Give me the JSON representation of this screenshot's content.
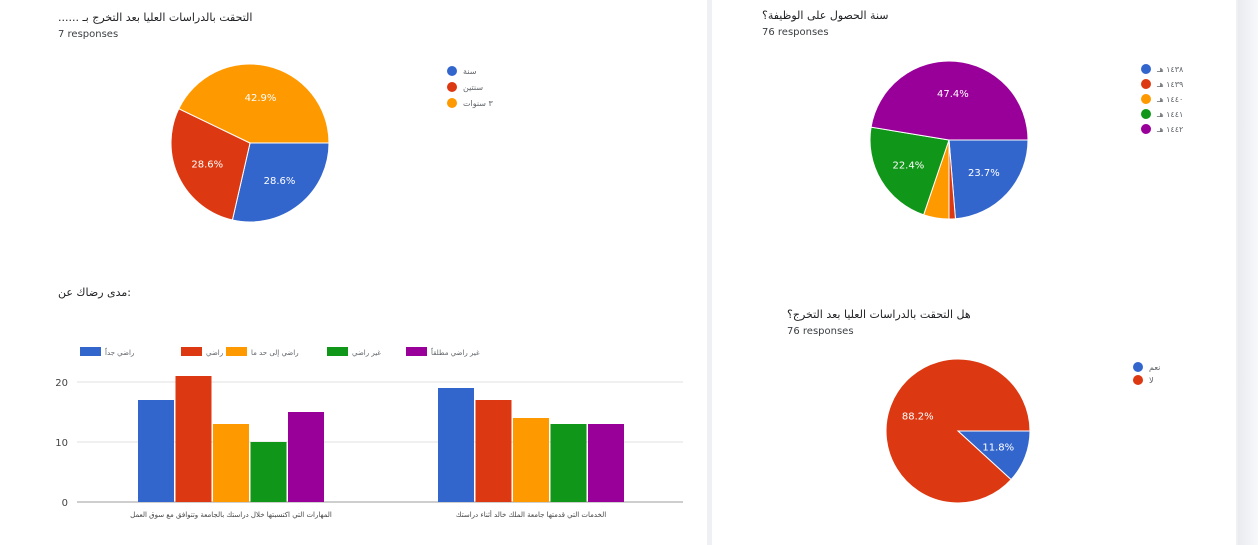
{
  "colors": {
    "blue": "#3366cc",
    "red": "#dc3912",
    "orange": "#ff9900",
    "green": "#109618",
    "purple": "#990099"
  },
  "chart_data": [
    {
      "type": "pie",
      "title": "...... التحقت بالدراسات العليا بعد التخرج بـ",
      "subtitle": "7 responses",
      "legend_position": "right",
      "categories": [
        "سنة",
        "سنتين",
        "٣ سنوات"
      ],
      "values": [
        28.6,
        28.6,
        42.9
      ],
      "labels": [
        "28.6%",
        "28.6%",
        "42.9%"
      ],
      "colors": [
        "#3366cc",
        "#dc3912",
        "#ff9900"
      ]
    },
    {
      "type": "pie",
      "title": "سنة الحصول على الوظيفة؟",
      "subtitle": "76 responses",
      "legend_position": "right",
      "categories": [
        "١٤٣٨ هـ",
        "١٤٣٩ هـ",
        "١٤٤٠ هـ",
        "١٤٤١ هـ",
        "١٤٤٢ هـ"
      ],
      "values": [
        23.7,
        1.3,
        5.2,
        22.4,
        47.4
      ],
      "labels": [
        "23.7%",
        "",
        "",
        "22.4%",
        "47.4%"
      ],
      "colors": [
        "#3366cc",
        "#dc3912",
        "#ff9900",
        "#109618",
        "#990099"
      ]
    },
    {
      "type": "bar",
      "title": "مدى رضاك عن:",
      "legend_position": "top",
      "categories": [
        "المهارات التي اكتسبتها خلال دراستك بالجامعة وتتوافق مع سوق العمل",
        "الخدمات التي قدمتها جامعة الملك خالد أثناء دراستك"
      ],
      "series": [
        {
          "name": "راضي جداً",
          "values": [
            17,
            19
          ],
          "color": "#3366cc"
        },
        {
          "name": "راضي",
          "values": [
            21,
            17
          ],
          "color": "#dc3912"
        },
        {
          "name": "راضي إلى حد ما",
          "values": [
            13,
            14
          ],
          "color": "#ff9900"
        },
        {
          "name": "غير راضي",
          "values": [
            10,
            13
          ],
          "color": "#109618"
        },
        {
          "name": "غير راضي مطلقاً",
          "values": [
            15,
            13
          ],
          "color": "#990099"
        }
      ],
      "yticks": [
        "0",
        "10",
        "20"
      ],
      "ylim": [
        0,
        22
      ],
      "grid": true
    },
    {
      "type": "pie",
      "title": "هل التحقت بالدراسات العليا بعد التخرج؟",
      "subtitle": "76 responses",
      "legend_position": "right",
      "categories": [
        "نعم",
        "لا"
      ],
      "values": [
        11.8,
        88.2
      ],
      "labels": [
        "11.8%",
        "88.2%"
      ],
      "colors": [
        "#3366cc",
        "#dc3912"
      ]
    }
  ]
}
